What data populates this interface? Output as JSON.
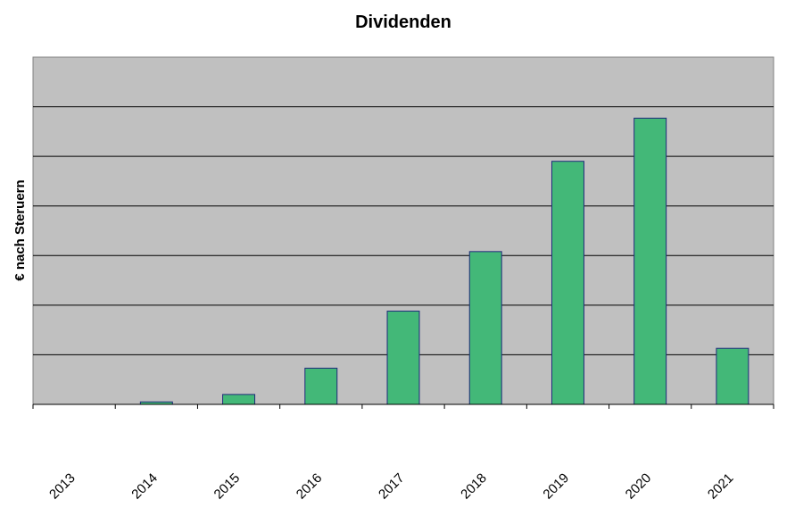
{
  "chart_data": {
    "type": "bar",
    "title": "Dividenden",
    "xlabel": "",
    "ylabel": "€ nach Steruern",
    "categories": [
      "2013",
      "2014",
      "2015",
      "2016",
      "2017",
      "2018",
      "2019",
      "2020",
      "2021"
    ],
    "values": [
      0,
      0.05,
      0.2,
      0.73,
      1.88,
      3.08,
      4.9,
      5.77,
      1.13
    ],
    "ylim": [
      0,
      7
    ],
    "grid": true,
    "legend": "none",
    "colors": {
      "plot_background": "#c0c0c0",
      "bar_fill": "#43b878",
      "bar_stroke": "#1f2a7a",
      "gridline": "#000000"
    }
  }
}
